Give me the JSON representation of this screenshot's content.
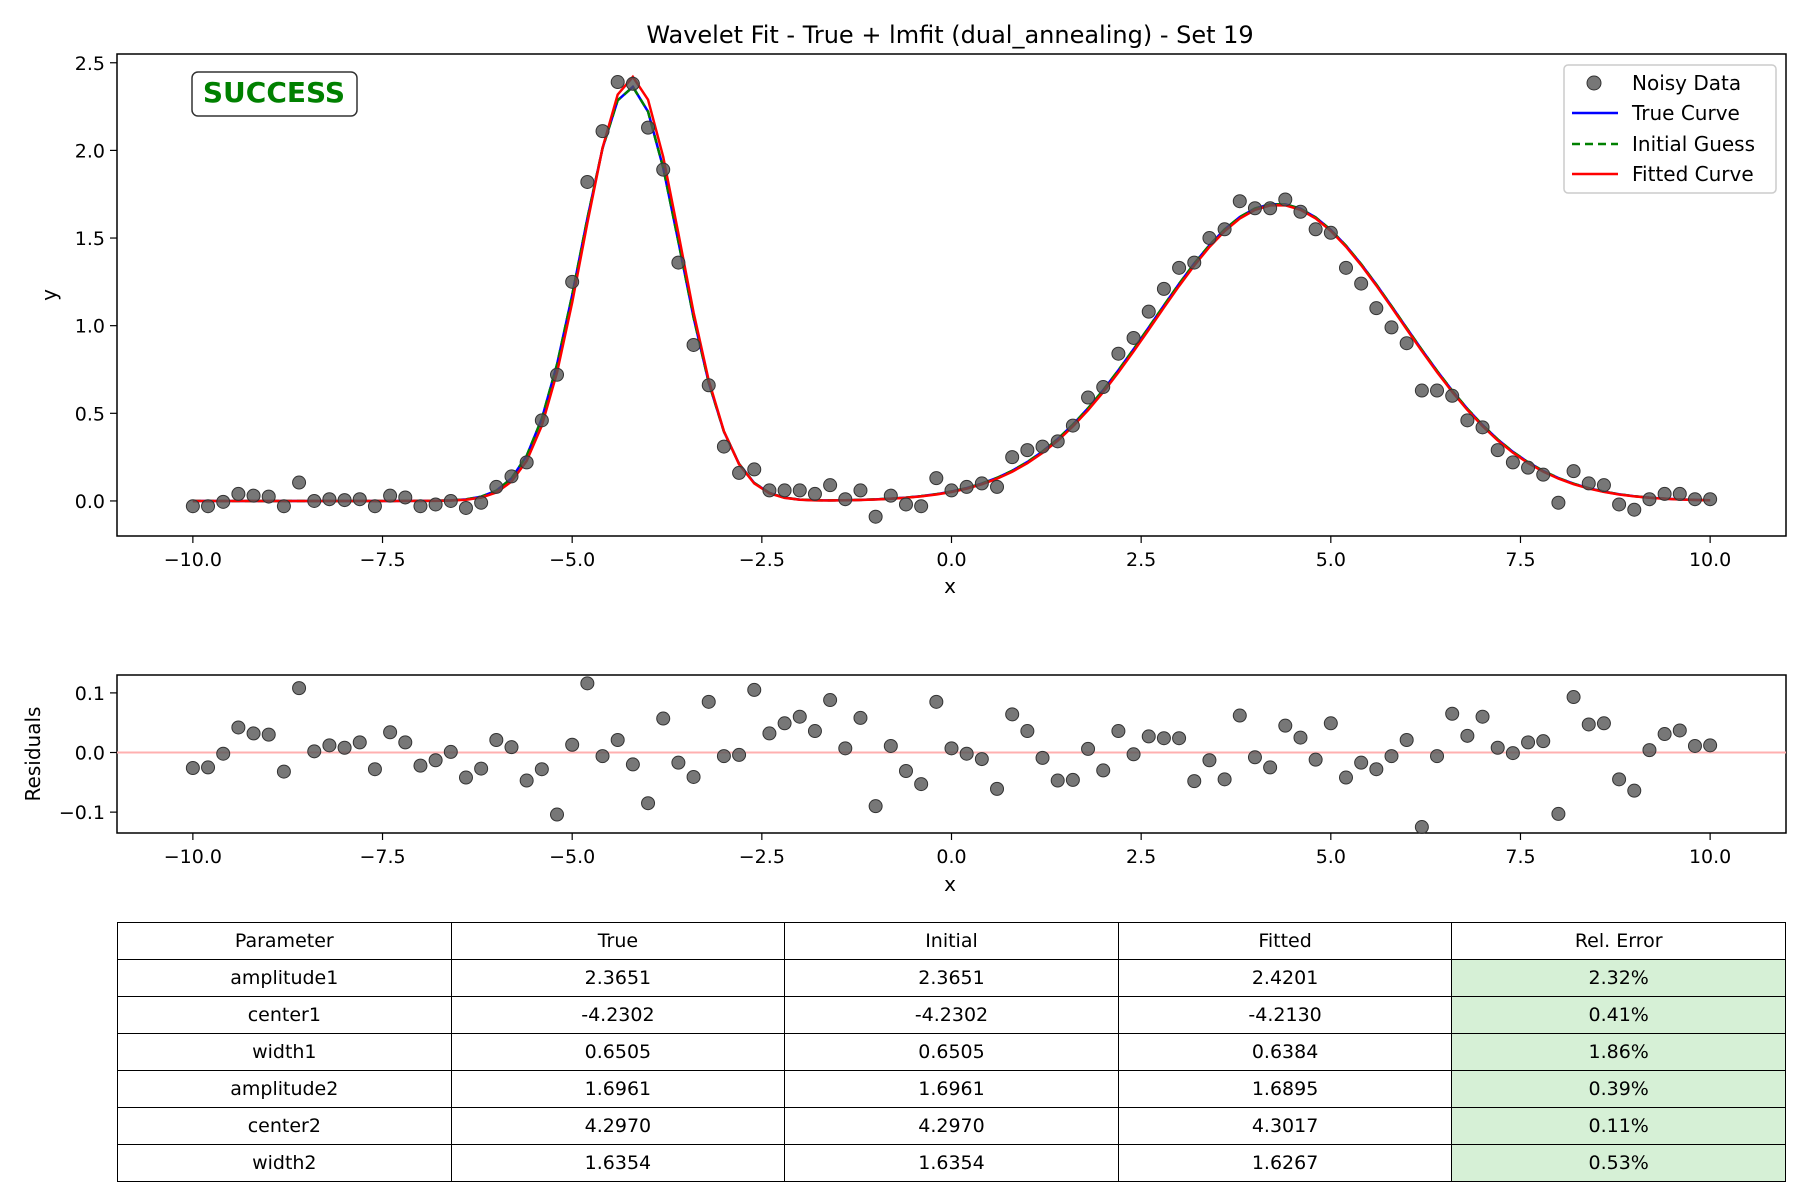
{
  "chart_data": [
    {
      "type": "line",
      "title": "Wavelet Fit - True + lmfit (dual_annealing) - Set 19",
      "xlabel": "x",
      "ylabel": "y",
      "xlim": [
        -11,
        11
      ],
      "ylim": [
        -0.2,
        2.55
      ],
      "xticks": [
        -10,
        -7.5,
        -5,
        -2.5,
        0,
        2.5,
        5,
        7.5,
        10
      ],
      "xtick_labels": [
        "−10.0",
        "−7.5",
        "−5.0",
        "−2.5",
        "0.0",
        "2.5",
        "5.0",
        "7.5",
        "10.0"
      ],
      "yticks": [
        0,
        0.5,
        1,
        1.5,
        2,
        2.5
      ],
      "ytick_labels": [
        "0.0",
        "0.5",
        "1.0",
        "1.5",
        "2.0",
        "2.5"
      ],
      "grid": false,
      "legend_position": "top-right",
      "status_badge": "SUCCESS",
      "series": [
        {
          "name": "Noisy Data",
          "style": "scatter",
          "color": "#555555",
          "x": [
            -10.0,
            -9.8,
            -9.6,
            -9.4,
            -9.2,
            -9.0,
            -8.8,
            -8.6,
            -8.4,
            -8.2,
            -8.0,
            -7.8,
            -7.6,
            -7.4,
            -7.2,
            -7.0,
            -6.8,
            -6.6,
            -6.4,
            -6.2,
            -6.0,
            -5.8,
            -5.6,
            -5.4,
            -5.2,
            -5.0,
            -4.8,
            -4.6,
            -4.4,
            -4.2,
            -4.0,
            -3.8,
            -3.6,
            -3.4,
            -3.2,
            -3.0,
            -2.8,
            -2.6,
            -2.4,
            -2.2,
            -2.0,
            -1.8,
            -1.6,
            -1.4,
            -1.2,
            -1.0,
            -0.8,
            -0.6,
            -0.4,
            -0.2,
            0.0,
            0.2,
            0.4,
            0.6,
            0.8,
            1.0,
            1.2,
            1.4,
            1.6,
            1.8,
            2.0,
            2.2,
            2.4,
            2.6,
            2.8,
            3.0,
            3.2,
            3.4,
            3.6,
            3.8,
            4.0,
            4.2,
            4.4,
            4.6,
            4.8,
            5.0,
            5.2,
            5.4,
            5.6,
            5.8,
            6.0,
            6.2,
            6.4,
            6.6,
            6.8,
            7.0,
            7.2,
            7.4,
            7.6,
            7.8,
            8.0,
            8.2,
            8.4,
            8.6,
            8.8,
            9.0,
            9.2,
            9.4,
            9.6,
            9.8,
            10.0
          ],
          "y": [
            -0.03,
            -0.03,
            -0.005,
            0.04,
            0.03,
            0.025,
            -0.03,
            0.105,
            0.0,
            0.01,
            0.005,
            0.01,
            -0.03,
            0.03,
            0.02,
            -0.03,
            -0.02,
            0.0,
            -0.04,
            -0.01,
            0.08,
            0.14,
            0.22,
            0.46,
            0.72,
            1.25,
            1.82,
            2.11,
            2.39,
            2.38,
            2.13,
            1.89,
            1.36,
            0.89,
            0.66,
            0.31,
            0.16,
            0.18,
            0.06,
            0.06,
            0.06,
            0.04,
            0.09,
            0.01,
            0.06,
            -0.09,
            0.03,
            -0.02,
            -0.03,
            0.13,
            0.06,
            0.08,
            0.1,
            0.08,
            0.25,
            0.29,
            0.31,
            0.34,
            0.43,
            0.59,
            0.65,
            0.84,
            0.93,
            1.08,
            1.21,
            1.33,
            1.36,
            1.5,
            1.55,
            1.71,
            1.67,
            1.67,
            1.72,
            1.65,
            1.55,
            1.53,
            1.33,
            1.24,
            1.1,
            0.99,
            0.9,
            0.63,
            0.63,
            0.6,
            0.46,
            0.42,
            0.29,
            0.22,
            0.19,
            0.15,
            -0.01,
            0.17,
            0.1,
            0.09,
            -0.02,
            -0.05,
            0.01,
            0.04,
            0.04,
            0.01,
            0.01
          ]
        },
        {
          "name": "True Curve",
          "style": "line",
          "color": "#0000ff",
          "params": {
            "amplitude1": 2.3651,
            "center1": -4.2302,
            "width1": 0.6505,
            "amplitude2": 1.6961,
            "center2": 4.297,
            "width2": 1.6354
          }
        },
        {
          "name": "Initial Guess",
          "style": "dashed",
          "color": "#008000",
          "params": {
            "amplitude1": 2.3651,
            "center1": -4.2302,
            "width1": 0.6505,
            "amplitude2": 1.6961,
            "center2": 4.297,
            "width2": 1.6354
          }
        },
        {
          "name": "Fitted Curve",
          "style": "line",
          "color": "#ff0000",
          "params": {
            "amplitude1": 2.4201,
            "center1": -4.213,
            "width1": 0.6384,
            "amplitude2": 1.6895,
            "center2": 4.3017,
            "width2": 1.6267
          }
        }
      ]
    },
    {
      "type": "scatter",
      "title": "",
      "xlabel": "x",
      "ylabel": "Residuals",
      "xlim": [
        -11,
        11
      ],
      "ylim": [
        -0.135,
        0.13
      ],
      "xticks": [
        -10,
        -7.5,
        -5,
        -2.5,
        0,
        2.5,
        5,
        7.5,
        10
      ],
      "xtick_labels": [
        "−10.0",
        "−7.5",
        "−5.0",
        "−2.5",
        "0.0",
        "2.5",
        "5.0",
        "7.5",
        "10.0"
      ],
      "yticks": [
        -0.1,
        0,
        0.1
      ],
      "ytick_labels": [
        "−0.1",
        "0.0",
        "0.1"
      ],
      "grid": false,
      "zero_line_color": "#ffb0b0",
      "series": [
        {
          "color": "#555555",
          "x": [
            -10.0,
            -9.8,
            -9.6,
            -9.4,
            -9.2,
            -9.0,
            -8.8,
            -8.6,
            -8.4,
            -8.2,
            -8.0,
            -7.8,
            -7.6,
            -7.4,
            -7.2,
            -7.0,
            -6.8,
            -6.6,
            -6.4,
            -6.2,
            -6.0,
            -5.8,
            -5.6,
            -5.4,
            -5.2,
            -5.0,
            -4.8,
            -4.6,
            -4.4,
            -4.2,
            -4.0,
            -3.8,
            -3.6,
            -3.4,
            -3.2,
            -3.0,
            -2.8,
            -2.6,
            -2.4,
            -2.2,
            -2.0,
            -1.8,
            -1.6,
            -1.4,
            -1.2,
            -1.0,
            -0.8,
            -0.6,
            -0.4,
            -0.2,
            0.0,
            0.2,
            0.4,
            0.6,
            0.8,
            1.0,
            1.2,
            1.4,
            1.6,
            1.8,
            2.0,
            2.2,
            2.4,
            2.6,
            2.8,
            3.0,
            3.2,
            3.4,
            3.6,
            3.8,
            4.0,
            4.2,
            4.4,
            4.6,
            4.8,
            5.0,
            5.2,
            5.4,
            5.6,
            5.8,
            6.0,
            6.2,
            6.4,
            6.6,
            6.8,
            7.0,
            7.2,
            7.4,
            7.6,
            7.8,
            8.0,
            8.2,
            8.4,
            8.6,
            8.8,
            9.0,
            9.2,
            9.4,
            9.6,
            9.8,
            10.0
          ],
          "y": [
            -0.026,
            -0.025,
            -0.002,
            0.042,
            0.032,
            0.03,
            -0.032,
            0.108,
            0.002,
            0.012,
            0.008,
            0.017,
            -0.028,
            0.034,
            0.017,
            -0.022,
            -0.013,
            0.001,
            -0.042,
            -0.027,
            0.021,
            0.009,
            -0.047,
            -0.028,
            -0.104,
            0.013,
            0.116,
            -0.006,
            0.021,
            -0.02,
            -0.085,
            0.057,
            -0.017,
            -0.041,
            0.085,
            -0.006,
            -0.004,
            0.105,
            0.032,
            0.049,
            0.06,
            0.036,
            0.088,
            0.007,
            0.058,
            -0.09,
            0.011,
            -0.031,
            -0.053,
            0.085,
            0.007,
            -0.002,
            -0.011,
            -0.061,
            0.064,
            0.036,
            -0.009,
            -0.047,
            -0.046,
            0.006,
            -0.03,
            0.036,
            -0.003,
            0.027,
            0.024,
            0.024,
            -0.048,
            -0.013,
            -0.045,
            0.062,
            -0.008,
            -0.025,
            0.045,
            0.025,
            -0.012,
            0.049,
            -0.042,
            -0.017,
            -0.028,
            -0.006,
            0.021,
            -0.125,
            -0.006,
            0.065,
            0.028,
            0.06,
            0.008,
            -0.001,
            0.017,
            0.019,
            -0.103,
            0.093,
            0.047,
            0.049,
            -0.045,
            -0.064,
            0.004,
            0.031,
            0.037,
            0.011,
            0.012
          ]
        }
      ]
    }
  ],
  "results_table": {
    "headers": [
      "Parameter",
      "True",
      "Initial",
      "Fitted",
      "Rel. Error"
    ],
    "rows": [
      [
        "amplitude1",
        "2.3651",
        "2.3651",
        "2.4201",
        "2.32%"
      ],
      [
        "center1",
        "-4.2302",
        "-4.2302",
        "-4.2130",
        "0.41%"
      ],
      [
        "width1",
        "0.6505",
        "0.6505",
        "0.6384",
        "1.86%"
      ],
      [
        "amplitude2",
        "1.6961",
        "1.6961",
        "1.6895",
        "0.39%"
      ],
      [
        "center2",
        "4.2970",
        "4.2970",
        "4.3017",
        "0.11%"
      ],
      [
        "width2",
        "1.6354",
        "1.6354",
        "1.6267",
        "0.53%"
      ]
    ]
  }
}
